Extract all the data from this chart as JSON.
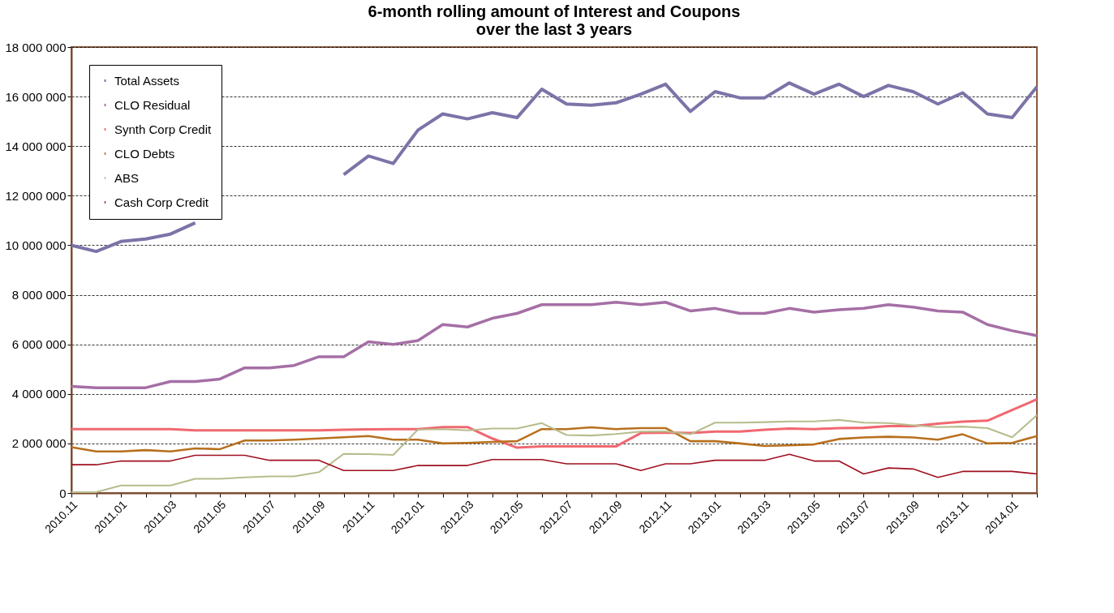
{
  "chart_data": {
    "type": "line",
    "title": "6-month rolling amount of Interest and Coupons\nover the last 3 years",
    "categories": [
      "2010.11",
      null,
      "2011.01",
      null,
      "2011.03",
      null,
      "2011.05",
      null,
      "2011.07",
      null,
      "2011.09",
      null,
      "2011.11",
      null,
      "2012.01",
      null,
      "2012.03",
      null,
      "2012.05",
      null,
      "2012.07",
      null,
      "2012.09",
      null,
      "2012.11",
      null,
      "2013.01",
      null,
      "2013.03",
      null,
      "2013.05",
      null,
      "2013.07",
      null,
      "2013.09",
      null,
      "2013.11",
      null,
      "2014.01",
      null
    ],
    "series": [
      {
        "name": "Total Assets",
        "color": "#7b74a8",
        "values": [
          10000000,
          9750000,
          10150000,
          10250000,
          10450000,
          10900000,
          null,
          null,
          null,
          null,
          null,
          12850000,
          13600000,
          13300000,
          14650000,
          15300000,
          15100000,
          15350000,
          15150000,
          16300000,
          15700000,
          15650000,
          15750000,
          16100000,
          16500000,
          15400000,
          16200000,
          15950000,
          15950000,
          16550000,
          16100000,
          16500000,
          16000000,
          16450000,
          16200000,
          15700000,
          16150000,
          15300000,
          15150000,
          16400000
        ]
      },
      {
        "name": "CLO Residual",
        "color": "#a56fa5",
        "values": [
          4300000,
          4250000,
          4250000,
          4250000,
          4500000,
          4500000,
          4600000,
          5050000,
          5050000,
          5150000,
          5500000,
          5500000,
          6100000,
          6000000,
          6150000,
          6800000,
          6700000,
          7050000,
          7250000,
          7600000,
          7600000,
          7600000,
          7700000,
          7600000,
          7700000,
          7350000,
          7450000,
          7250000,
          7250000,
          7450000,
          7300000,
          7400000,
          7450000,
          7600000,
          7500000,
          7350000,
          7300000,
          6800000,
          6550000,
          6350000
        ]
      },
      {
        "name": "Synth Corp Credit",
        "color": "#f06870",
        "values": [
          2580000,
          2580000,
          2580000,
          2580000,
          2580000,
          2530000,
          2530000,
          2530000,
          2530000,
          2530000,
          2530000,
          2550000,
          2570000,
          2580000,
          2580000,
          2660000,
          2660000,
          2200000,
          1830000,
          1880000,
          1880000,
          1880000,
          1880000,
          2420000,
          2440000,
          2420000,
          2480000,
          2480000,
          2550000,
          2600000,
          2580000,
          2620000,
          2630000,
          2700000,
          2700000,
          2800000,
          2880000,
          2920000,
          3350000,
          3780000
        ]
      },
      {
        "name": "CLO Debts",
        "color": "#b8701e",
        "values": [
          1850000,
          1680000,
          1680000,
          1730000,
          1680000,
          1800000,
          1770000,
          2120000,
          2120000,
          2150000,
          2200000,
          2250000,
          2300000,
          2150000,
          2150000,
          2000000,
          2020000,
          2060000,
          2090000,
          2580000,
          2580000,
          2650000,
          2580000,
          2620000,
          2620000,
          2090000,
          2090000,
          2000000,
          1900000,
          1920000,
          1960000,
          2180000,
          2240000,
          2270000,
          2240000,
          2150000,
          2370000,
          2000000,
          2020000,
          2300000
        ]
      },
      {
        "name": "ABS",
        "color": "#b8bc8c",
        "values": [
          30000,
          30000,
          300000,
          300000,
          300000,
          570000,
          570000,
          630000,
          670000,
          670000,
          840000,
          1580000,
          1570000,
          1540000,
          2560000,
          2580000,
          2530000,
          2600000,
          2600000,
          2820000,
          2340000,
          2320000,
          2380000,
          2480000,
          2490000,
          2370000,
          2840000,
          2840000,
          2860000,
          2890000,
          2890000,
          2950000,
          2840000,
          2820000,
          2730000,
          2660000,
          2680000,
          2620000,
          2250000,
          3140000
        ]
      },
      {
        "name": "Cash Corp Credit",
        "color": "#a01020",
        "values": [
          1140000,
          1140000,
          1290000,
          1290000,
          1290000,
          1520000,
          1520000,
          1520000,
          1320000,
          1320000,
          1320000,
          910000,
          910000,
          910000,
          1110000,
          1110000,
          1110000,
          1350000,
          1350000,
          1350000,
          1180000,
          1180000,
          1180000,
          910000,
          1180000,
          1180000,
          1320000,
          1320000,
          1320000,
          1560000,
          1290000,
          1290000,
          770000,
          1010000,
          970000,
          630000,
          870000,
          870000,
          870000,
          770000
        ]
      }
    ],
    "ylim": [
      0,
      18000000
    ],
    "yticks": [
      {
        "value": 0,
        "label": "0"
      },
      {
        "value": 2000000,
        "label": "2 000 000"
      },
      {
        "value": 4000000,
        "label": "4 000 000"
      },
      {
        "value": 6000000,
        "label": "6 000 000"
      },
      {
        "value": 8000000,
        "label": "8 000 000"
      },
      {
        "value": 10000000,
        "label": "10 000 000"
      },
      {
        "value": 12000000,
        "label": "12 000 000"
      },
      {
        "value": 14000000,
        "label": "14 000 000"
      },
      {
        "value": 16000000,
        "label": "16 000 000"
      },
      {
        "value": 18000000,
        "label": "18 000 000"
      }
    ],
    "grid": "y",
    "legend": "top left",
    "marker": "none",
    "line_style": "solid"
  }
}
